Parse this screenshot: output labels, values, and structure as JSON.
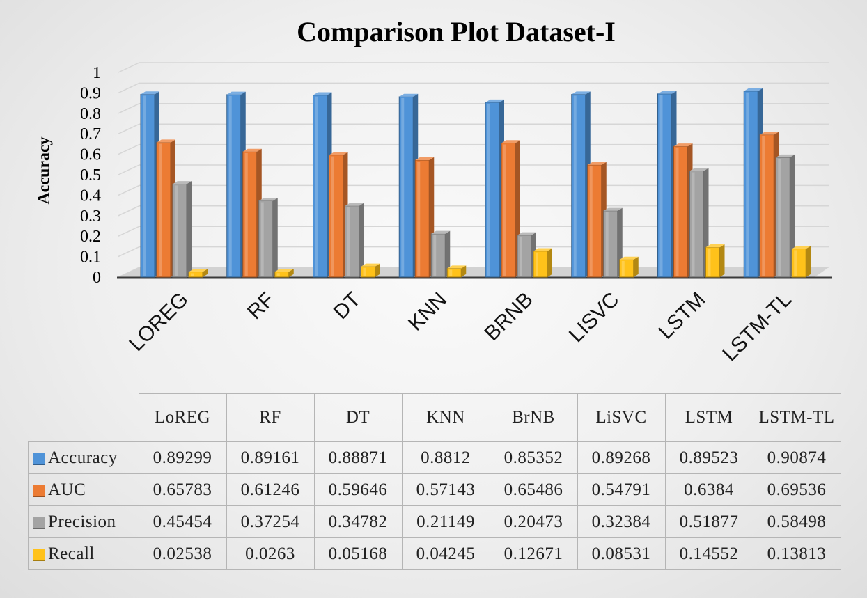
{
  "chart_data": {
    "type": "bar",
    "title": "Comparison Plot Dataset-I",
    "xlabel": "",
    "ylabel": "Accuracy",
    "ylim": [
      0,
      1
    ],
    "yticks": [
      "0",
      "0.1",
      "0.2",
      "0.3",
      "0.4",
      "0.5",
      "0.6",
      "0.7",
      "0.8",
      "0.9",
      "1"
    ],
    "categories": [
      "LOREG",
      "RF",
      "DT",
      "KNN",
      "BRNB",
      "LISVC",
      "LSTM",
      "LSTM-TL"
    ],
    "table_headers": [
      "LoREG",
      "RF",
      "DT",
      "KNN",
      "BrNB",
      "LiSVC",
      "LSTM",
      "LSTM-TL"
    ],
    "series": [
      {
        "name": "Accuracy",
        "color": "#4f93d8",
        "values": [
          0.89299,
          0.89161,
          0.88871,
          0.8812,
          0.85352,
          0.89268,
          0.89523,
          0.90874
        ],
        "labels": [
          "0.89299",
          "0.89161",
          "0.88871",
          "0.8812",
          "0.85352",
          "0.89268",
          "0.89523",
          "0.90874"
        ]
      },
      {
        "name": "AUC",
        "color": "#ec7b33",
        "values": [
          0.65783,
          0.61246,
          0.59646,
          0.57143,
          0.65486,
          0.54791,
          0.6384,
          0.69536
        ],
        "labels": [
          "0.65783",
          "0.61246",
          "0.59646",
          "0.57143",
          "0.65486",
          "0.54791",
          "0.6384",
          "0.69536"
        ]
      },
      {
        "name": "Precision",
        "color": "#a3a3a3",
        "values": [
          0.45454,
          0.37254,
          0.34782,
          0.21149,
          0.20473,
          0.32384,
          0.51877,
          0.58498
        ],
        "labels": [
          "0.45454",
          "0.37254",
          "0.34782",
          "0.21149",
          "0.20473",
          "0.32384",
          "0.51877",
          "0.58498"
        ]
      },
      {
        "name": "Recall",
        "color": "#ffc21a",
        "values": [
          0.02538,
          0.0263,
          0.05168,
          0.04245,
          0.12671,
          0.08531,
          0.14552,
          0.13813
        ],
        "labels": [
          "0.02538",
          "0.0263",
          "0.05168",
          "0.04245",
          "0.12671",
          "0.08531",
          "0.14552",
          "0.13813"
        ]
      }
    ]
  }
}
